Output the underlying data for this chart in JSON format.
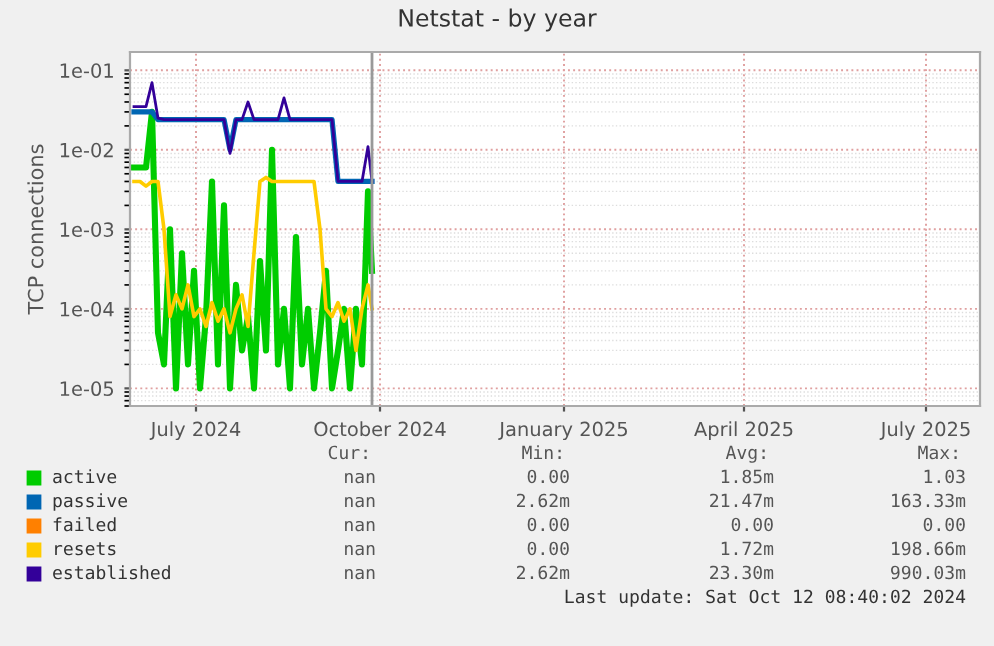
{
  "chart_data": {
    "type": "line",
    "title": "Netstat - by year",
    "ylabel": "TCP connections",
    "x": [
      "2024-06-15",
      "2024-06-18",
      "2024-06-21",
      "2024-06-24",
      "2024-06-27",
      "2024-06-30",
      "2024-07-03",
      "2024-07-06",
      "2024-07-09",
      "2024-07-12",
      "2024-07-15",
      "2024-07-18",
      "2024-07-21",
      "2024-07-24",
      "2024-07-27",
      "2024-07-30",
      "2024-08-02",
      "2024-08-05",
      "2024-08-08",
      "2024-08-11",
      "2024-08-14",
      "2024-08-17",
      "2024-08-20",
      "2024-08-23",
      "2024-08-26",
      "2024-08-29",
      "2024-09-01",
      "2024-09-04",
      "2024-09-07",
      "2024-09-10",
      "2024-09-13",
      "2024-09-16",
      "2024-09-19",
      "2024-09-22",
      "2024-09-25",
      "2024-09-28",
      "2024-10-01",
      "2024-10-04",
      "2024-10-07",
      "2024-10-10",
      "2024-10-12"
    ],
    "series": [
      {
        "name": "active",
        "color": "#00cc00",
        "values": [
          0.006,
          0.006,
          0.006,
          0.03,
          5e-05,
          2e-05,
          0.001,
          1e-05,
          0.0005,
          2e-05,
          0.0003,
          1e-05,
          8e-05,
          0.004,
          2e-05,
          0.002,
          1e-05,
          0.0002,
          3e-05,
          8e-05,
          1e-05,
          0.0004,
          3e-05,
          0.01,
          2e-05,
          0.0001,
          1e-05,
          0.0008,
          2e-05,
          0.0001,
          1e-05,
          5e-05,
          0.0003,
          1e-05,
          3e-05,
          0.0001,
          1e-05,
          0.0001,
          2e-05,
          0.003,
          0.0003
        ]
      },
      {
        "name": "passive",
        "color": "#0066b3",
        "values": [
          0.03,
          0.03,
          0.03,
          0.03,
          0.024,
          0.024,
          0.024,
          0.024,
          0.024,
          0.024,
          0.024,
          0.024,
          0.024,
          0.024,
          0.024,
          0.024,
          0.01,
          0.024,
          0.024,
          0.024,
          0.024,
          0.024,
          0.024,
          0.024,
          0.024,
          0.024,
          0.024,
          0.024,
          0.024,
          0.024,
          0.024,
          0.024,
          0.024,
          0.024,
          0.004,
          0.004,
          0.004,
          0.004,
          0.004,
          0.004,
          0.004
        ]
      },
      {
        "name": "failed",
        "color": "#ff8000",
        "values": [
          null,
          null,
          null,
          null,
          null,
          null,
          null,
          null,
          null,
          null,
          null,
          null,
          null,
          null,
          null,
          null,
          null,
          null,
          null,
          null,
          null,
          null,
          null,
          null,
          null,
          null,
          null,
          null,
          null,
          null,
          null,
          null,
          null,
          null,
          null,
          null,
          null,
          null,
          null,
          null,
          null
        ]
      },
      {
        "name": "resets",
        "color": "#ffcc00",
        "values": [
          0.004,
          0.004,
          0.0035,
          0.004,
          0.004,
          0.001,
          8e-05,
          0.00015,
          0.0001,
          0.0002,
          8e-05,
          0.0001,
          6e-05,
          0.00012,
          7e-05,
          0.0001,
          5e-05,
          0.0001,
          0.00015,
          6e-05,
          0.0005,
          0.004,
          0.0045,
          0.004,
          0.004,
          0.004,
          0.004,
          0.004,
          0.004,
          0.004,
          0.004,
          0.001,
          0.0001,
          8e-05,
          0.00012,
          7e-05,
          0.0001,
          3e-05,
          0.0001,
          0.0002,
          0.0001
        ]
      },
      {
        "name": "established",
        "color": "#330099",
        "values": [
          0.035,
          0.035,
          0.035,
          0.07,
          0.025,
          0.024,
          0.024,
          0.024,
          0.024,
          0.024,
          0.024,
          0.024,
          0.024,
          0.024,
          0.024,
          0.024,
          0.009,
          0.024,
          0.024,
          0.04,
          0.024,
          0.024,
          0.024,
          0.024,
          0.024,
          0.045,
          0.024,
          0.024,
          0.024,
          0.024,
          0.024,
          0.024,
          0.024,
          0.024,
          0.004,
          0.004,
          0.004,
          0.004,
          0.004,
          0.011,
          0.004
        ]
      }
    ],
    "log": "y",
    "ylim": [
      6e-06,
      0.17
    ],
    "yticks": [
      {
        "value": 1e-05,
        "label": "1e-05"
      },
      {
        "value": 0.0001,
        "label": "1e-04"
      },
      {
        "value": 0.001,
        "label": "1e-03"
      },
      {
        "value": 0.01,
        "label": "1e-02"
      },
      {
        "value": 0.1,
        "label": "1e-01"
      }
    ],
    "xlim": [
      "2024-06-13",
      "2025-08-12"
    ],
    "xticks": [
      {
        "value": "2024-07-16",
        "label": "July 2024"
      },
      {
        "value": "2024-10-16",
        "label": "October 2024"
      },
      {
        "value": "2025-01-16",
        "label": "January 2025"
      },
      {
        "value": "2025-04-16",
        "label": "April 2025"
      },
      {
        "value": "2025-07-16",
        "label": "July 2025"
      }
    ],
    "grid": true,
    "legend": "bottom",
    "line_style": "solid",
    "marker": "none",
    "ref_lines": [
      {
        "axis": "x",
        "value": "2024-10-12",
        "color": "#999999"
      }
    ],
    "annotations": [
      "Cur:",
      "Min:",
      "Avg:",
      "Max:",
      "nan",
      "0.00",
      "1.85m",
      "1.03",
      "nan",
      "2.62m",
      "21.47m",
      "163.33m",
      "nan",
      "0.00",
      "0.00",
      "0.00",
      "nan",
      "0.00",
      "1.72m",
      "198.66m",
      "nan",
      "2.62m",
      "23.30m",
      "990.03m",
      "Last update: Sat Oct 12 08:40:02 2024"
    ]
  }
}
